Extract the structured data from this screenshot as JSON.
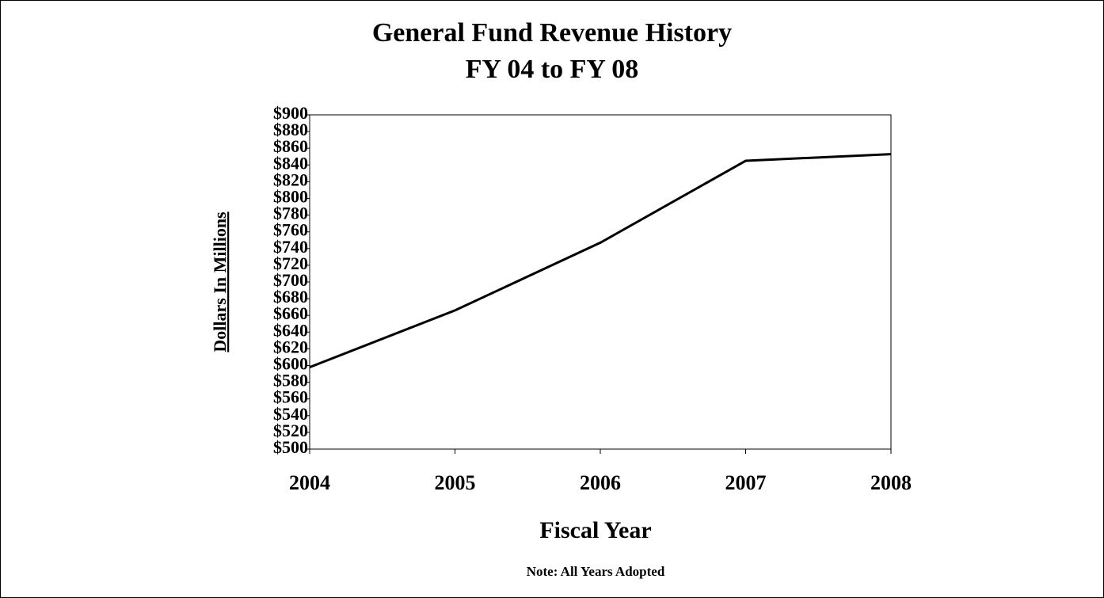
{
  "chart_data": {
    "type": "line",
    "title": "General Fund Revenue History",
    "subtitle": "FY 04 to FY 08",
    "y_label": "Dollars In Millions",
    "x_label": "Fiscal Year",
    "note": "Note: All Years Adopted",
    "categories": [
      "2004",
      "2005",
      "2006",
      "2007",
      "2008"
    ],
    "values": [
      598,
      666,
      747,
      845,
      853
    ],
    "color": "#000000",
    "ylim": [
      500,
      900
    ],
    "yticks": [
      {
        "value": 500,
        "label": "$500"
      },
      {
        "value": 520,
        "label": "$520"
      },
      {
        "value": 540,
        "label": "$540"
      },
      {
        "value": 560,
        "label": "$560"
      },
      {
        "value": 580,
        "label": "$580"
      },
      {
        "value": 600,
        "label": "$600"
      },
      {
        "value": 620,
        "label": "$620"
      },
      {
        "value": 640,
        "label": "$640"
      },
      {
        "value": 660,
        "label": "$660"
      },
      {
        "value": 680,
        "label": "$680"
      },
      {
        "value": 700,
        "label": "$700"
      },
      {
        "value": 720,
        "label": "$720"
      },
      {
        "value": 740,
        "label": "$740"
      },
      {
        "value": 760,
        "label": "$760"
      },
      {
        "value": 780,
        "label": "$780"
      },
      {
        "value": 800,
        "label": "$800"
      },
      {
        "value": 820,
        "label": "$820"
      },
      {
        "value": 840,
        "label": "$840"
      },
      {
        "value": 860,
        "label": "$860"
      },
      {
        "value": 880,
        "label": "$880"
      },
      {
        "value": 900,
        "label": "$900"
      }
    ],
    "grid": false
  }
}
